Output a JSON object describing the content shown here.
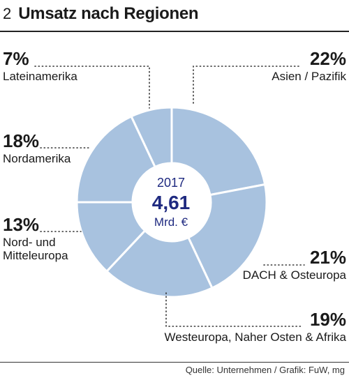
{
  "header": {
    "number": "2",
    "title": "Umsatz nach Regionen"
  },
  "center": {
    "year": "2017",
    "value": "4,61",
    "unit": "Mrd. €"
  },
  "source": "Quelle: Unternehmen / Grafik: FuW, mg",
  "colors": {
    "slice": "#a8c2df",
    "border": "#ffffff",
    "center_text": "#1f2a80"
  },
  "chart_data": {
    "type": "pie",
    "donut": true,
    "title": "Umsatz nach Regionen",
    "slices": [
      {
        "label": "Asien / Pazifik",
        "pct_label": "22%",
        "value": 22
      },
      {
        "label": "DACH & Osteuropa",
        "pct_label": "21%",
        "value": 21
      },
      {
        "label": "Westeuropa, Naher Osten & Afrika",
        "pct_label": "19%",
        "value": 19
      },
      {
        "label": "Nord- und Mitteleuropa",
        "pct_label": "13%",
        "value": 13
      },
      {
        "label": "Nordamerika",
        "pct_label": "18%",
        "value": 18
      },
      {
        "label": "Lateinamerika",
        "pct_label": "7%",
        "value": 7
      }
    ]
  }
}
